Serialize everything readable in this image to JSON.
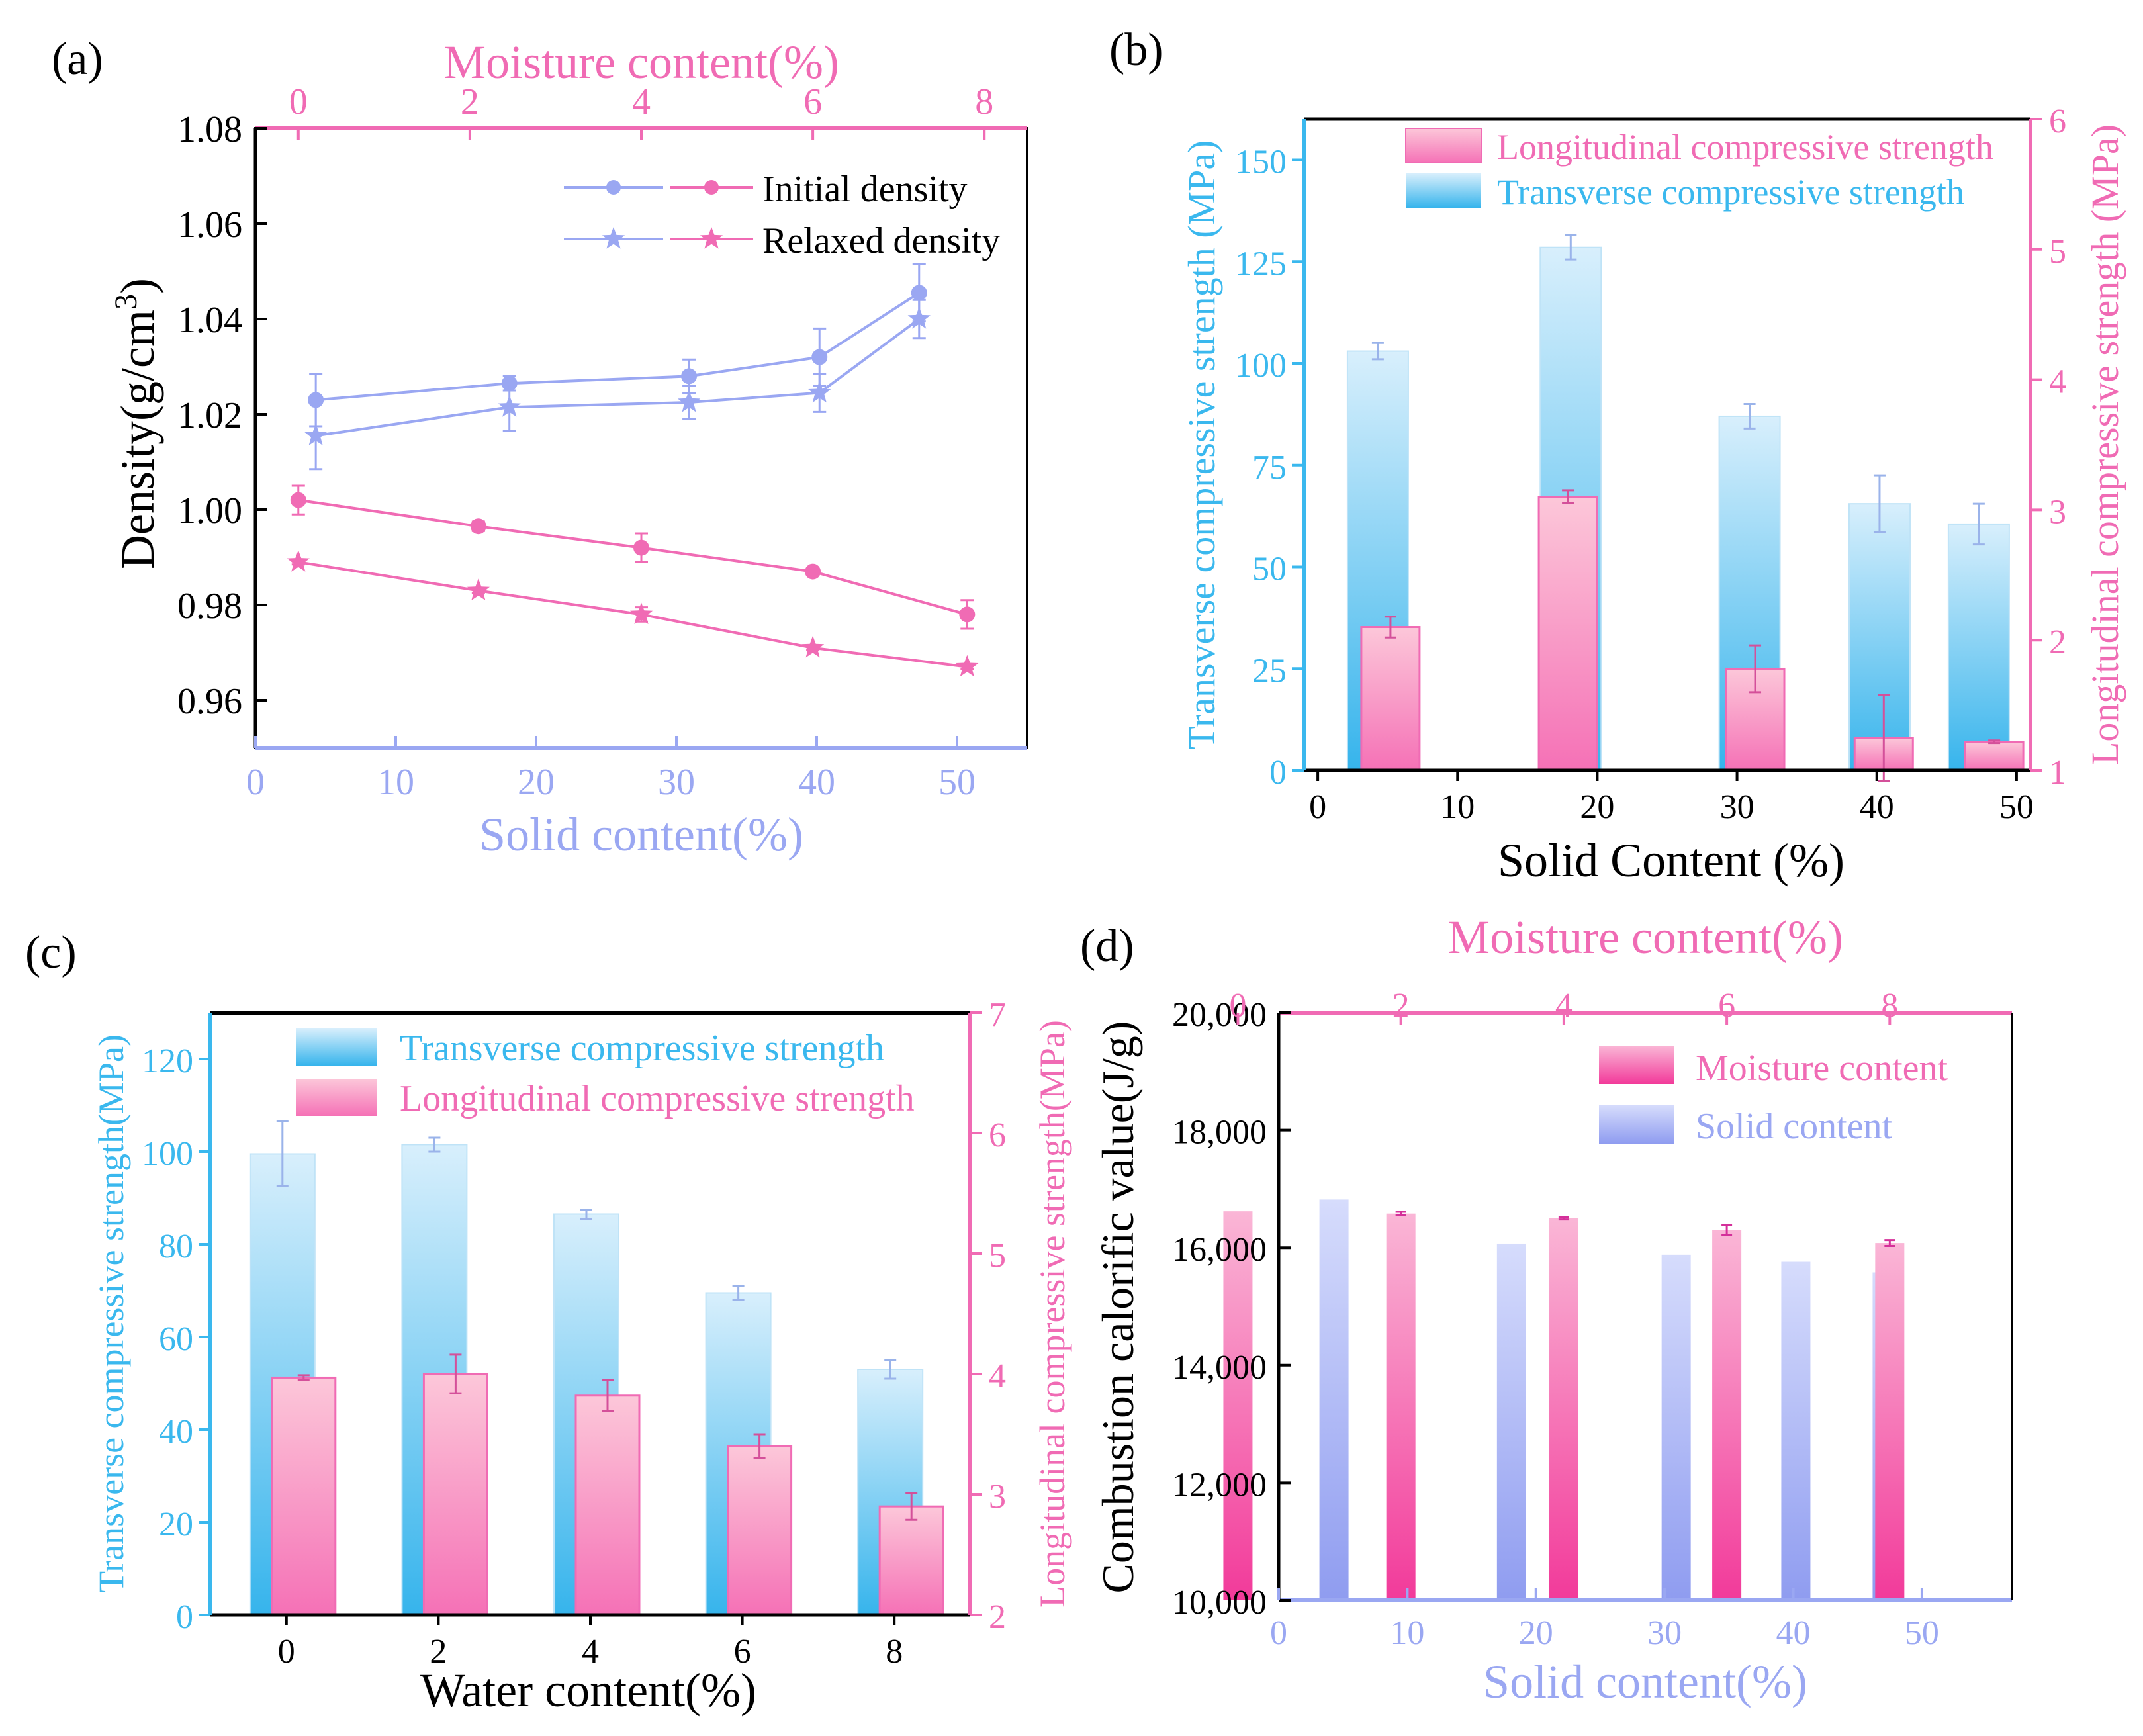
{
  "colors": {
    "blue": "#9aa7f2",
    "pink": "#f06bb4",
    "cyan": "#3ab8ee",
    "black": "#000000"
  },
  "chart_data": [
    {
      "panel": "(a)",
      "type": "line",
      "xlabel": "Solid content(%)",
      "x2label": "Moisture content(%)",
      "ylabel": "Density(g/cm3)",
      "ylabel_main": "Density(g/cm",
      "ylabel_sup": "3",
      "ylabel_end": ")",
      "xlim": [
        0,
        55
      ],
      "xticks": [
        0,
        10,
        20,
        30,
        40,
        50
      ],
      "x2lim": [
        -0.5,
        8.5
      ],
      "x2ticks": [
        0,
        2,
        4,
        6,
        8
      ],
      "ylim": [
        0.95,
        1.08
      ],
      "yticks": [
        "0.96",
        "0.98",
        "1.00",
        "1.02",
        "1.04",
        "1.06",
        "1.08"
      ],
      "legend": [
        "Initial density",
        "Relaxed density"
      ],
      "series": [
        {
          "name": "Initial density",
          "axis": "solid",
          "marker": "circle",
          "x": [
            4.3,
            18.1,
            30.9,
            40.2,
            47.3
          ],
          "y": [
            1.023,
            1.0265,
            1.028,
            1.032,
            1.0455
          ],
          "err": [
            0.0055,
            0.0015,
            0.0035,
            0.006,
            0.006
          ]
        },
        {
          "name": "Relaxed density",
          "axis": "solid",
          "marker": "star",
          "x": [
            4.3,
            18.1,
            30.9,
            40.2,
            47.3
          ],
          "y": [
            1.0155,
            1.0215,
            1.0225,
            1.0245,
            1.04
          ],
          "err": [
            0.007,
            0.005,
            0.0035,
            0.004,
            0.004
          ]
        },
        {
          "name": "Initial density",
          "axis": "moisture",
          "marker": "circle",
          "x": [
            0.0,
            2.1,
            4.0,
            6.0,
            7.8
          ],
          "y": [
            1.002,
            0.9965,
            0.992,
            0.987,
            0.978
          ],
          "err": [
            0.003,
            0.001,
            0.003,
            0.0005,
            0.003
          ]
        },
        {
          "name": "Relaxed density",
          "axis": "moisture",
          "marker": "star",
          "x": [
            0.0,
            2.1,
            4.0,
            6.0,
            7.8
          ],
          "y": [
            0.989,
            0.983,
            0.978,
            0.971,
            0.967
          ],
          "err": [
            0.0005,
            0.0005,
            0.0015,
            0.0005,
            0.0005
          ]
        }
      ]
    },
    {
      "panel": "(b)",
      "type": "bar",
      "xlabel": "Solid Content (%)",
      "ylabel": "Transverse compressive strength (MPa)",
      "y2label": "Longitudinal compressive strength (MPa)",
      "xlim": [
        -1,
        51
      ],
      "xticks": [
        0,
        10,
        20,
        30,
        40,
        50
      ],
      "ylim": [
        0,
        160
      ],
      "yticks": [
        0,
        25,
        50,
        75,
        100,
        125,
        150
      ],
      "y2lim": [
        1,
        6
      ],
      "y2ticks": [
        1,
        2,
        3,
        4,
        5,
        6
      ],
      "legend": [
        "Longitudinal compressive strength",
        "Transverse compressive strength"
      ],
      "series": [
        {
          "name": "Transverse compressive strength",
          "x": [
            4.3,
            18.1,
            30.9,
            40.2,
            47.3
          ],
          "values": [
            103,
            128.5,
            87,
            65.5,
            60.5
          ],
          "err": [
            2,
            3,
            3,
            7,
            5
          ]
        },
        {
          "name": "Longitudinal compressive strength",
          "x": [
            5.2,
            17.9,
            31.3,
            40.5,
            48.4
          ],
          "values": [
            2.1,
            3.1,
            1.78,
            1.25,
            1.22
          ],
          "err": [
            0.08,
            0.05,
            0.18,
            0.33,
            0.01
          ]
        }
      ]
    },
    {
      "panel": "(c)",
      "type": "bar",
      "xlabel": "Water content(%)",
      "ylabel": "Transverse compressive strength(MPa)",
      "y2label": "Longitudinal compressive strength(MPa)",
      "xlim": [
        -1,
        9
      ],
      "xticks": [
        0,
        2,
        4,
        6,
        8
      ],
      "ylim": [
        0,
        130
      ],
      "yticks": [
        0,
        20,
        40,
        60,
        80,
        100,
        120
      ],
      "y2lim": [
        2,
        7
      ],
      "y2ticks": [
        2,
        3,
        4,
        5,
        6,
        7
      ],
      "legend": [
        "Transverse compressive strength",
        "Longitudinal compressive strength"
      ],
      "series": [
        {
          "name": "Transverse compressive strength",
          "x": [
            0,
            2,
            4,
            6,
            8
          ],
          "values": [
            99.5,
            101.5,
            86.5,
            69.5,
            53
          ],
          "err": [
            7,
            1.5,
            1,
            1.5,
            2
          ]
        },
        {
          "name": "Longitudinal compressive strength",
          "x": [
            0,
            2,
            4,
            6,
            8
          ],
          "values": [
            3.97,
            4.0,
            3.82,
            3.4,
            2.9
          ],
          "err": [
            0.02,
            0.16,
            0.13,
            0.1,
            0.11
          ]
        }
      ]
    },
    {
      "panel": "(d)",
      "type": "bar",
      "xlabel": "Solid content(%)",
      "x2label": "Moisture content(%)",
      "ylabel": "Combustion calorific value(J/g)",
      "xlim": [
        0,
        57
      ],
      "xticks": [
        0,
        10,
        20,
        30,
        40,
        50
      ],
      "x2lim": [
        0.5,
        9.5
      ],
      "x2ticks": [
        0,
        2,
        4,
        6,
        8
      ],
      "ylim": [
        10000,
        20000
      ],
      "yticks": [
        "10,000",
        "12,000",
        "14,000",
        "16,000",
        "18,000",
        "20,000"
      ],
      "legend": [
        "Moisture content",
        "Solid content"
      ],
      "series": [
        {
          "name": "Moisture content",
          "axis": "moisture",
          "x": [
            0,
            2,
            4,
            6,
            8
          ],
          "values": [
            16620,
            16580,
            16500,
            16300,
            16080
          ],
          "err": [
            0,
            30,
            20,
            80,
            50
          ]
        },
        {
          "name": "Solid content",
          "axis": "solid",
          "x": [
            4.3,
            18.1,
            30.9,
            40.2,
            47.3
          ],
          "values": [
            16820,
            16070,
            15880,
            15760,
            15580
          ],
          "err": [
            0,
            0,
            0,
            0,
            20
          ]
        }
      ]
    }
  ]
}
